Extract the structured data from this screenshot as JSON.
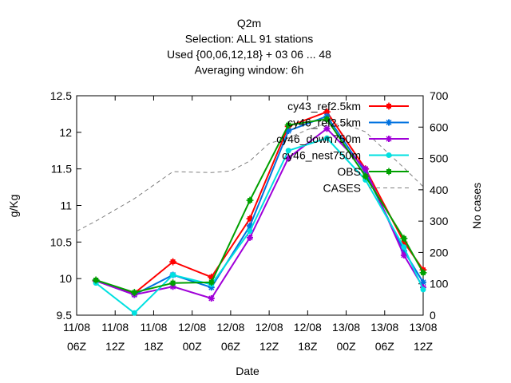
{
  "chart_data": {
    "type": "line",
    "title_lines": [
      "Q2m",
      "Selection: ALL      91 stations",
      "Used {00,06,12,18} + 03 06 ... 48",
      "Averaging window:  6h"
    ],
    "xlabel": "Date",
    "ylabel": "g/Kg",
    "y2label": "No cases",
    "x_ticks": [
      {
        "line1": "11/08",
        "line2": "06Z"
      },
      {
        "line1": "11/08",
        "line2": "12Z"
      },
      {
        "line1": "11/08",
        "line2": "18Z"
      },
      {
        "line1": "12/08",
        "line2": "00Z"
      },
      {
        "line1": "12/08",
        "line2": "06Z"
      },
      {
        "line1": "12/08",
        "line2": "12Z"
      },
      {
        "line1": "12/08",
        "line2": "18Z"
      },
      {
        "line1": "13/08",
        "line2": "00Z"
      },
      {
        "line1": "13/08",
        "line2": "06Z"
      },
      {
        "line1": "13/08",
        "line2": "12Z"
      }
    ],
    "x_tick_hours": [
      0,
      6,
      12,
      18,
      24,
      30,
      36,
      42,
      48,
      54
    ],
    "xlim_hours": [
      0,
      54
    ],
    "ylim": [
      9.5,
      12.5
    ],
    "y_ticks": [
      "9.5",
      "10",
      "10.5",
      "11",
      "11.5",
      "12",
      "12.5"
    ],
    "y2lim": [
      0,
      700
    ],
    "y2_ticks": [
      "0",
      "100",
      "200",
      "300",
      "400",
      "500",
      "600",
      "700"
    ],
    "x_hours": [
      3,
      9,
      15,
      21,
      27,
      33,
      39,
      45,
      51,
      54
    ],
    "legend_position": "top-right",
    "grid": false,
    "series": [
      {
        "name": "cy43_ref2.5km",
        "color": "#ff0000",
        "marker": "plus-square",
        "axis": "left",
        "values": [
          9.97,
          9.8,
          10.23,
          10.02,
          10.82,
          12.08,
          12.28,
          11.5,
          10.5,
          10.12
        ]
      },
      {
        "name": "cy46_ref2.5km",
        "color": "#0072e0",
        "marker": "star",
        "axis": "left",
        "values": [
          9.97,
          9.78,
          10.05,
          9.88,
          10.72,
          12.02,
          12.22,
          11.45,
          10.38,
          9.95
        ]
      },
      {
        "name": "cy46_down750m",
        "color": "#a000d8",
        "marker": "star",
        "axis": "left",
        "values": [
          9.97,
          9.78,
          9.89,
          9.73,
          10.56,
          11.65,
          12.05,
          11.5,
          10.32,
          9.88
        ]
      },
      {
        "name": "cy46_nest750m",
        "color": "#00e0e0",
        "marker": "dot",
        "axis": "left",
        "values": [
          9.94,
          9.53,
          10.05,
          9.92,
          10.65,
          11.75,
          11.92,
          11.35,
          10.43,
          9.85
        ]
      },
      {
        "name": "OBS",
        "color": "#00a000",
        "marker": "plus-square",
        "axis": "left",
        "values": [
          9.98,
          9.81,
          9.94,
          9.95,
          11.07,
          12.1,
          12.18,
          11.4,
          10.55,
          10.08
        ]
      },
      {
        "name": "CASES",
        "color": "#808080",
        "marker": "none",
        "dashed": true,
        "axis": "right",
        "x_hours": [
          0,
          3,
          9,
          15,
          21,
          24,
          27,
          30,
          33,
          36,
          39,
          42,
          45,
          51,
          54
        ],
        "values": [
          268,
          300,
          372,
          458,
          455,
          460,
          492,
          548,
          565,
          592,
          612,
          608,
          585,
          470,
          410
        ]
      }
    ]
  }
}
